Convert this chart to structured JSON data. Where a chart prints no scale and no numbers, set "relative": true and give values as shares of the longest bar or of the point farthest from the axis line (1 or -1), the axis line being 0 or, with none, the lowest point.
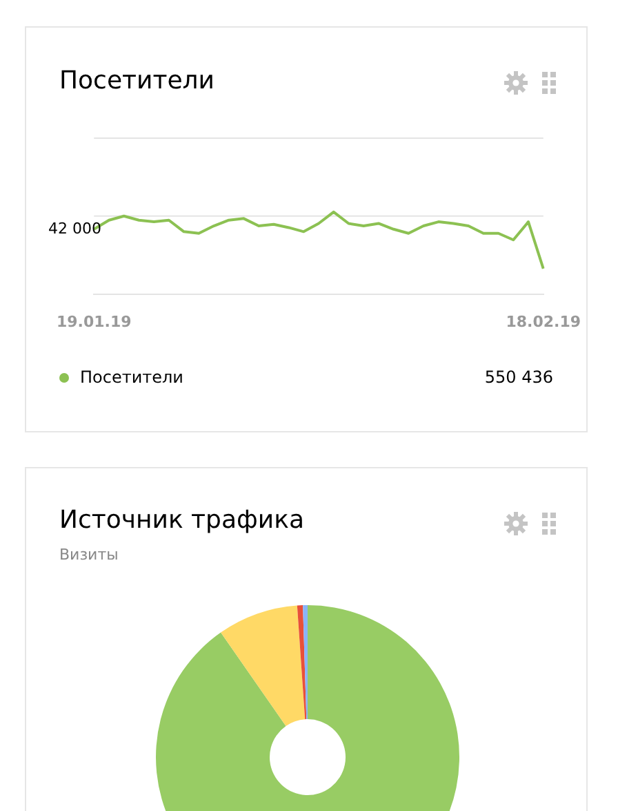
{
  "chart_data": [
    {
      "type": "line",
      "title": "Посетители",
      "categories": [
        "19.01.19",
        null,
        null,
        null,
        null,
        null,
        null,
        null,
        null,
        null,
        null,
        null,
        null,
        null,
        null,
        null,
        null,
        null,
        null,
        null,
        null,
        null,
        null,
        null,
        null,
        null,
        null,
        null,
        null,
        null,
        "18.02.19"
      ],
      "series": [
        {
          "name": "Посетители",
          "color": "#8cc152",
          "values": [
            0.79,
            0.9,
            0.95,
            0.9,
            0.88,
            0.9,
            0.76,
            0.74,
            0.83,
            0.9,
            0.92,
            0.83,
            0.85,
            0.81,
            0.76,
            0.86,
            1,
            0.86,
            0.83,
            0.86,
            0.79,
            0.74,
            0.83,
            0.88,
            0.86,
            0.83,
            0.74,
            0.74,
            0.66,
            0.88,
            0.31
          ]
        }
      ],
      "relative": true,
      "legend": "bottom",
      "annotations": [
        "42 000",
        "550 436"
      ],
      "ref_lines": [
        {
          "axis": "y",
          "value": 0.95,
          "color": "#e4e4e4"
        },
        {
          "axis": "y",
          "value": 1.9,
          "color": "#e4e4e4"
        }
      ]
    },
    {
      "type": "donut",
      "title": "Источник трафика",
      "subtitle": "Визиты",
      "categories": [
        null,
        null,
        null,
        null
      ],
      "values": [
        90.3,
        8.6,
        0.6,
        0.5
      ],
      "colors": [
        "#98cc64",
        "#ffd966",
        "#e8503a",
        "#8ab4f8"
      ]
    }
  ]
}
